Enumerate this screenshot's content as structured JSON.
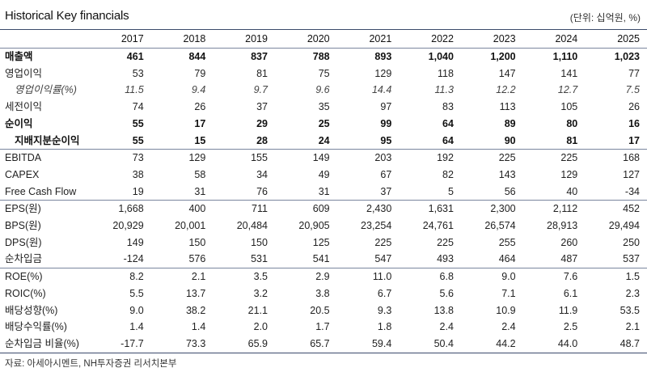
{
  "title": "Historical Key financials",
  "unit": "(단위: 십억원, %)",
  "columns": [
    "2017",
    "2018",
    "2019",
    "2020",
    "2021",
    "2022",
    "2023",
    "2024",
    "2025"
  ],
  "rows": [
    {
      "label": "매출액",
      "style": "bold",
      "values": [
        "461",
        "844",
        "837",
        "788",
        "893",
        "1,040",
        "1,200",
        "1,110",
        "1,023"
      ]
    },
    {
      "label": "영업이익",
      "style": "",
      "values": [
        "53",
        "79",
        "81",
        "75",
        "129",
        "118",
        "147",
        "141",
        "77"
      ]
    },
    {
      "label": "영업이익률(%)",
      "style": "italic indent",
      "values": [
        "11.5",
        "9.4",
        "9.7",
        "9.6",
        "14.4",
        "11.3",
        "12.2",
        "12.7",
        "7.5"
      ]
    },
    {
      "label": "세전이익",
      "style": "",
      "values": [
        "74",
        "26",
        "37",
        "35",
        "97",
        "83",
        "113",
        "105",
        "26"
      ]
    },
    {
      "label": "순이익",
      "style": "bold",
      "values": [
        "55",
        "17",
        "29",
        "25",
        "99",
        "64",
        "89",
        "80",
        "16"
      ]
    },
    {
      "label": "지배지분순이익",
      "style": "bold indent",
      "values": [
        "55",
        "15",
        "28",
        "24",
        "95",
        "64",
        "90",
        "81",
        "17"
      ]
    },
    {
      "label": "EBITDA",
      "style": "sep",
      "values": [
        "73",
        "129",
        "155",
        "149",
        "203",
        "192",
        "225",
        "225",
        "168"
      ]
    },
    {
      "label": "CAPEX",
      "style": "",
      "values": [
        "38",
        "58",
        "34",
        "49",
        "67",
        "82",
        "143",
        "129",
        "127"
      ]
    },
    {
      "label": "Free Cash Flow",
      "style": "",
      "values": [
        "19",
        "31",
        "76",
        "31",
        "37",
        "5",
        "56",
        "40",
        "-34"
      ]
    },
    {
      "label": "EPS(원)",
      "style": "sep",
      "values": [
        "1,668",
        "400",
        "711",
        "609",
        "2,430",
        "1,631",
        "2,300",
        "2,112",
        "452"
      ]
    },
    {
      "label": "BPS(원)",
      "style": "",
      "values": [
        "20,929",
        "20,001",
        "20,484",
        "20,905",
        "23,254",
        "24,761",
        "26,574",
        "28,913",
        "29,494"
      ]
    },
    {
      "label": "DPS(원)",
      "style": "",
      "values": [
        "149",
        "150",
        "150",
        "125",
        "225",
        "225",
        "255",
        "260",
        "250"
      ]
    },
    {
      "label": "순차입금",
      "style": "",
      "values": [
        "-124",
        "576",
        "531",
        "541",
        "547",
        "493",
        "464",
        "487",
        "537"
      ]
    },
    {
      "label": "ROE(%)",
      "style": "sep",
      "values": [
        "8.2",
        "2.1",
        "3.5",
        "2.9",
        "11.0",
        "6.8",
        "9.0",
        "7.6",
        "1.5"
      ]
    },
    {
      "label": "ROIC(%)",
      "style": "",
      "values": [
        "5.5",
        "13.7",
        "3.2",
        "3.8",
        "6.7",
        "5.6",
        "7.1",
        "6.1",
        "2.3"
      ]
    },
    {
      "label": "배당성향(%)",
      "style": "",
      "values": [
        "9.0",
        "38.2",
        "21.1",
        "20.5",
        "9.3",
        "13.8",
        "10.9",
        "11.9",
        "53.5"
      ]
    },
    {
      "label": "배당수익률(%)",
      "style": "",
      "values": [
        "1.4",
        "1.4",
        "2.0",
        "1.7",
        "1.8",
        "2.4",
        "2.4",
        "2.5",
        "2.1"
      ]
    },
    {
      "label": "순차입금 비율(%)",
      "style": "last",
      "values": [
        "-17.7",
        "73.3",
        "65.9",
        "65.7",
        "59.4",
        "50.4",
        "44.2",
        "44.0",
        "48.7"
      ]
    }
  ],
  "source": "자료: 아세아시멘트, NH투자증권 리서치본부"
}
